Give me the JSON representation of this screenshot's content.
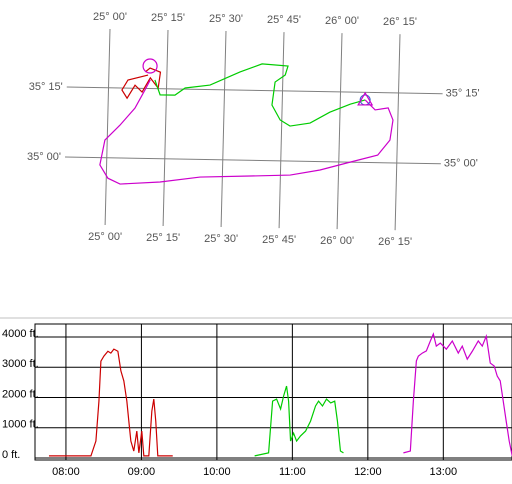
{
  "chart_data": [
    {
      "type": "track",
      "xlim": [
        24.82,
        26.44
      ],
      "ylim": [
        34.76,
        35.46
      ],
      "xticks": [
        {
          "value": 25.0,
          "label": "25° 00'"
        },
        {
          "value": 25.25,
          "label": "25° 15'"
        },
        {
          "value": 25.5,
          "label": "25° 30'"
        },
        {
          "value": 25.75,
          "label": "25° 45'"
        },
        {
          "value": 26.0,
          "label": "26° 00'"
        },
        {
          "value": 26.25,
          "label": "26° 15'"
        }
      ],
      "yticks": [
        {
          "value": 35.25,
          "label": "35° 15'"
        },
        {
          "value": 35.0,
          "label": "35° 00'"
        }
      ],
      "grid": true,
      "series": [
        {
          "color": "#cc0000",
          "x": [
            25.169,
            25.083,
            25.058,
            25.081,
            25.114,
            25.145,
            25.179,
            25.214,
            25.222,
            25.177,
            25.157
          ],
          "values": [
            35.298,
            35.279,
            35.243,
            35.214,
            35.261,
            35.237,
            35.288,
            35.252,
            35.309,
            35.323,
            35.309
          ]
        },
        {
          "color": "#00cc00",
          "x": [
            25.199,
            25.223,
            25.287,
            25.33,
            25.437,
            25.565,
            25.659,
            25.771,
            25.76,
            25.717,
            25.706,
            25.743,
            25.786,
            25.872,
            25.956,
            26.043,
            26.107
          ],
          "values": [
            35.281,
            35.228,
            35.228,
            35.254,
            35.266,
            35.315,
            35.345,
            35.339,
            35.307,
            35.281,
            35.199,
            35.146,
            35.125,
            35.137,
            35.177,
            35.207,
            35.223
          ]
        },
        {
          "color": "#cc00cc",
          "x": [
            26.107,
            26.151,
            26.207,
            26.229,
            26.218,
            26.167,
            26.049,
            25.92,
            25.792,
            25.619,
            25.404,
            25.232,
            25.06,
            25.007,
            24.971,
            24.99,
            25.053,
            25.116,
            25.157,
            25.179
          ],
          "values": [
            35.223,
            35.188,
            35.196,
            35.153,
            35.081,
            35.027,
            35.0,
            34.97,
            34.95,
            34.944,
            34.937,
            34.917,
            34.907,
            34.927,
            34.974,
            35.063,
            35.117,
            35.179,
            35.244,
            35.281
          ]
        }
      ]
    },
    {
      "type": "line",
      "xlim": [
        7.59,
        13.91
      ],
      "ylim": [
        0,
        4200
      ],
      "xticks": [
        {
          "value": 8,
          "label": "08:00"
        },
        {
          "value": 9,
          "label": "09:00"
        },
        {
          "value": 10,
          "label": "10:00"
        },
        {
          "value": 11,
          "label": "11:00"
        },
        {
          "value": 12,
          "label": "12:00"
        },
        {
          "value": 13,
          "label": "13:00"
        }
      ],
      "yticks": [
        {
          "value": 0,
          "label": "0 ft."
        },
        {
          "value": 1000,
          "label": "1000 ft."
        },
        {
          "value": 2000,
          "label": "2000 ft."
        },
        {
          "value": 3000,
          "label": "3000 ft."
        },
        {
          "value": 4000,
          "label": "4000 ft."
        }
      ],
      "grid": true,
      "series": [
        {
          "color": "#cc0000",
          "x": [
            7.775,
            8.331,
            8.397,
            8.437,
            8.463,
            8.503,
            8.556,
            8.595,
            8.635,
            8.688,
            8.728,
            8.767,
            8.807,
            8.833,
            8.86,
            8.899,
            8.939,
            8.966,
            9.005,
            9.032,
            9.098,
            9.138,
            9.164,
            9.19,
            9.217,
            9.415
          ],
          "values": [
            70,
            70,
            560,
            1880,
            3200,
            3370,
            3530,
            3470,
            3600,
            3530,
            2880,
            2550,
            1880,
            1220,
            560,
            230,
            890,
            170,
            890,
            70,
            70,
            1550,
            1950,
            1220,
            70,
            70
          ]
        },
        {
          "color": "#00cc00",
          "x": [
            10.5,
            10.685,
            10.738,
            10.791,
            10.844,
            10.884,
            10.923,
            10.95,
            10.976,
            11.016,
            11.056,
            11.108,
            11.175,
            11.241,
            11.307,
            11.347,
            11.399,
            11.452,
            11.508,
            11.561,
            11.597,
            11.637,
            11.677
          ],
          "values": [
            70,
            170,
            1880,
            1950,
            1620,
            2050,
            2380,
            1880,
            560,
            820,
            560,
            730,
            890,
            1220,
            1720,
            1880,
            1720,
            1950,
            1820,
            1880,
            1220,
            230,
            170
          ]
        },
        {
          "color": "#cc00cc",
          "x": [
            12.471,
            12.563,
            12.603,
            12.643,
            12.669,
            12.722,
            12.775,
            12.828,
            12.868,
            12.907,
            12.96,
            13.04,
            13.119,
            13.198,
            13.251,
            13.317,
            13.384,
            13.463,
            13.516,
            13.569,
            13.622,
            13.675,
            13.714,
            13.754,
            13.794,
            13.833,
            13.873,
            13.913
          ],
          "values": [
            170,
            230,
            1880,
            3210,
            3370,
            3470,
            3540,
            3870,
            4100,
            3700,
            3800,
            3600,
            3870,
            3470,
            3700,
            3270,
            3530,
            3870,
            3700,
            4030,
            3140,
            3040,
            2710,
            2550,
            1880,
            1220,
            560,
            70
          ]
        }
      ]
    }
  ]
}
